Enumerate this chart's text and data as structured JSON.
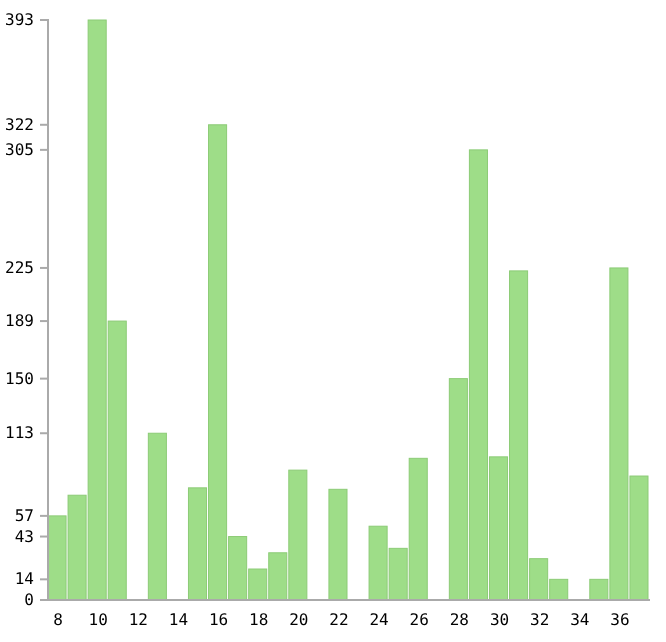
{
  "chart_data": {
    "type": "bar",
    "categories": [
      "8",
      null,
      "10",
      null,
      "12",
      null,
      "14",
      null,
      "16",
      null,
      "18",
      null,
      "20",
      null,
      "22",
      null,
      "24",
      null,
      "26",
      null,
      "28",
      null,
      "30",
      null,
      "32",
      null,
      "34",
      null,
      "36",
      null
    ],
    "values": [
      57,
      71,
      393,
      189,
      0,
      113,
      0,
      76,
      322,
      43,
      21,
      32,
      88,
      0,
      75,
      0,
      50,
      35,
      96,
      0,
      150,
      305,
      97,
      223,
      28,
      14,
      0,
      14,
      225,
      84
    ],
    "color": "#9edd88",
    "ylim": [
      0,
      393
    ],
    "yticks": [
      0,
      14,
      43,
      57,
      113,
      150,
      189,
      225,
      305,
      322,
      393
    ],
    "grid": false
  }
}
